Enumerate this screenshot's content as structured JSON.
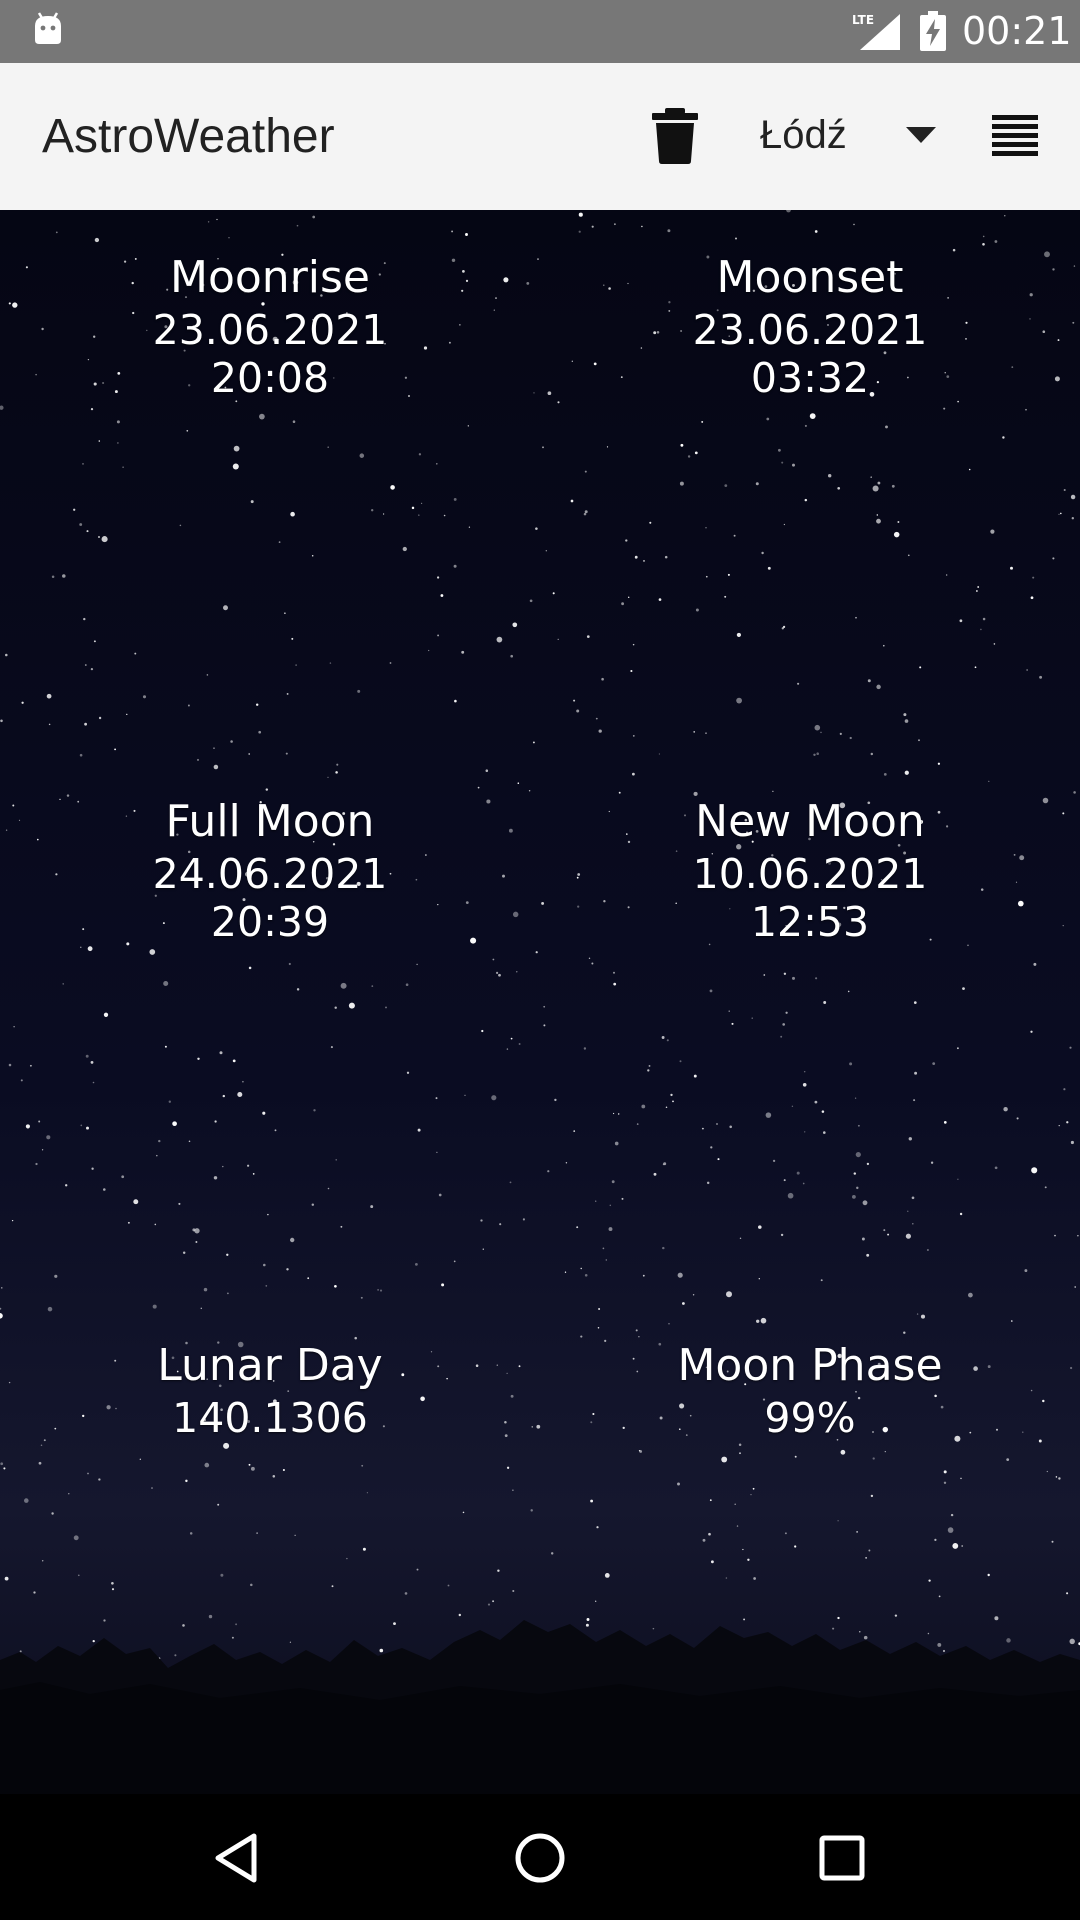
{
  "status_bar": {
    "time": "00:21",
    "network": "LTE",
    "icons": [
      "android-debug-icon",
      "lte-signal-icon",
      "battery-charging-icon"
    ]
  },
  "app_bar": {
    "title": "AstroWeather",
    "city": "Łódź",
    "icons": [
      "trash-icon",
      "dropdown-arrow-icon",
      "menu-icon"
    ]
  },
  "moon": {
    "moonrise": {
      "label": "Moonrise",
      "date": "23.06.2021",
      "time": "20:08"
    },
    "moonset": {
      "label": "Moonset",
      "date": "23.06.2021",
      "time": "03:32"
    },
    "full_moon": {
      "label": "Full Moon",
      "date": "24.06.2021",
      "time": "20:39"
    },
    "new_moon": {
      "label": "New Moon",
      "date": "10.06.2021",
      "time": "12:53"
    },
    "lunar_day": {
      "label": "Lunar Day",
      "value": "140.1306"
    },
    "moon_phase": {
      "label": "Moon Phase",
      "value": "99%"
    }
  },
  "colors": {
    "status_bar_bg": "#777777",
    "app_bar_bg": "#f4f4f4",
    "sky_bg": "#0a0c22",
    "text_on_sky": "#ffffff"
  }
}
